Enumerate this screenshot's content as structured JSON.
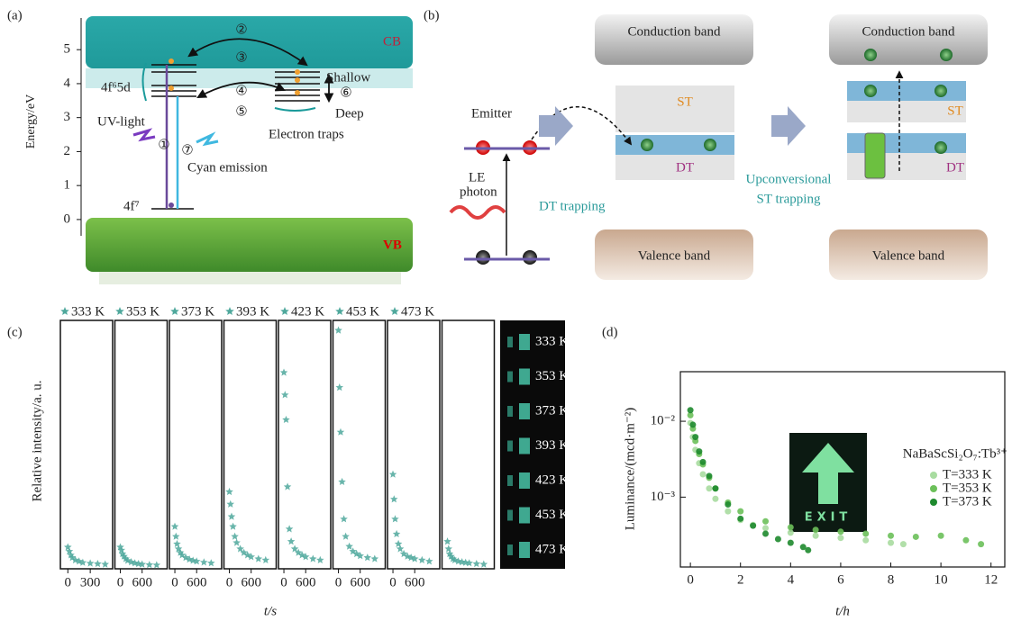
{
  "panel_a": {
    "label": "(a)",
    "y_label": "Energy/eV",
    "ylim": [
      -0.4,
      5.8
    ],
    "yticks": [
      0,
      1,
      2,
      3,
      4,
      5
    ],
    "texts": {
      "cb": "CB",
      "vb": "VB",
      "excited": "4f⁶5d",
      "ground": "4f⁷",
      "uv": "UV-light",
      "emission": "Cyan emission",
      "shallow": "Shallow",
      "deep": "Deep",
      "traps": "Electron traps",
      "s1": "①",
      "s2": "②",
      "s3": "③",
      "s4": "④",
      "s5": "⑤",
      "s6": "⑥",
      "s7": "⑦"
    }
  },
  "panel_b": {
    "label": "(b)",
    "texts": {
      "cb_left": "Conduction band",
      "cb_right": "Conduction band",
      "vb_left": "Valence band",
      "vb_right": "Valence band",
      "st_left": "ST",
      "dt_left": "DT",
      "st_right": "ST",
      "dt_right": "DT",
      "emitter": "Emitter",
      "le_1": "LE",
      "le_2": "photon",
      "dt_trapping": "DT trapping",
      "up_1": "Upconversional",
      "up_2": "ST trapping"
    }
  },
  "chart_data": [
    {
      "type": "scatter",
      "label": "(c)",
      "y_label": "Relative intensity/a. u.",
      "x_label": "t/s",
      "ylim": [
        0,
        100
      ],
      "photo_labels": [
        "333 K",
        "353 K",
        "373 K",
        "393 K",
        "423 K",
        "453 K",
        "473 K"
      ],
      "series": [
        {
          "name": "333 K",
          "color": "#4fa89c",
          "xlim": [
            -100,
            600
          ],
          "xticks": [
            0,
            300
          ],
          "x": [
            0,
            20,
            40,
            60,
            100,
            150,
            200,
            300,
            400,
            500
          ],
          "values": [
            8.7,
            7,
            5.5,
            4.5,
            3.5,
            3,
            2.5,
            2.2,
            2,
            1.8
          ]
        },
        {
          "name": "353 K",
          "color": "#4fa89c",
          "xlim": [
            -150,
            1290
          ],
          "xticks": [
            0,
            600
          ],
          "x": [
            0,
            30,
            60,
            100,
            150,
            200,
            300,
            400,
            500,
            600,
            800,
            1000
          ],
          "values": [
            8.7,
            7.5,
            6,
            5,
            4,
            3.3,
            2.7,
            2.3,
            2,
            1.8,
            1.6,
            1.5
          ]
        },
        {
          "name": "373 K",
          "color": "#4fa89c",
          "xlim": [
            -150,
            1290
          ],
          "xticks": [
            0,
            600
          ],
          "x": [
            0,
            30,
            60,
            100,
            150,
            200,
            300,
            400,
            500,
            600,
            800,
            1000
          ],
          "values": [
            17,
            13,
            10,
            8,
            6.5,
            5.5,
            4.5,
            3.8,
            3.3,
            3,
            2.6,
            2.3
          ]
        },
        {
          "name": "393 K",
          "color": "#4fa89c",
          "xlim": [
            -150,
            1290
          ],
          "xticks": [
            0,
            600
          ],
          "x": [
            0,
            30,
            60,
            100,
            150,
            200,
            300,
            400,
            500,
            600,
            800,
            1000
          ],
          "values": [
            31,
            26,
            21,
            17,
            13,
            10.5,
            8,
            6.5,
            5.5,
            4.8,
            4,
            3.5
          ]
        },
        {
          "name": "423 K",
          "color": "#4fa89c",
          "xlim": [
            -150,
            1290
          ],
          "xticks": [
            0,
            600
          ],
          "x": [
            0,
            30,
            60,
            100,
            150,
            200,
            300,
            400,
            500,
            600,
            800,
            1000
          ],
          "values": [
            79,
            70,
            60,
            33,
            16,
            11,
            8,
            6.5,
            5.5,
            4.8,
            4,
            3.5
          ]
        },
        {
          "name": "453 K",
          "color": "#4fa89c",
          "xlim": [
            -150,
            1290
          ],
          "xticks": [
            0,
            600
          ],
          "x": [
            0,
            30,
            60,
            100,
            150,
            200,
            300,
            400,
            500,
            600,
            800,
            1000
          ],
          "values": [
            96,
            73,
            55,
            35,
            20,
            13,
            9,
            7,
            6,
            5.2,
            4.5,
            4
          ]
        },
        {
          "name": "473 K",
          "color": "#4fa89c",
          "xlim": [
            -150,
            1290
          ],
          "xticks": [
            0,
            600
          ],
          "x": [
            0,
            30,
            60,
            100,
            150,
            200,
            300,
            400,
            500,
            600,
            800,
            1000
          ],
          "values": [
            38,
            28,
            20,
            14,
            10,
            8,
            6,
            5,
            4.5,
            4,
            3.5,
            3
          ]
        },
        {
          "name": null,
          "color": "#4fa89c",
          "xlim": [
            -150,
            1290
          ],
          "x": [
            0,
            30,
            60,
            100,
            150,
            200,
            300,
            400,
            500,
            600,
            800,
            1000
          ],
          "values": [
            11,
            8,
            6,
            5,
            4,
            3.5,
            3,
            2.7,
            2.5,
            2.3,
            2,
            1.8
          ]
        }
      ]
    },
    {
      "type": "scatter",
      "label": "(d)",
      "y_label": "Luminance/(mcd·m⁻²)",
      "x_label": "t/h",
      "log_y": true,
      "annotation": "NaBaScSi₂O₇:Tb³⁺",
      "sign": "EXIT",
      "xlim": [
        -0.4,
        12.55
      ],
      "xticks": [
        0,
        2,
        4,
        6,
        8,
        10,
        12
      ],
      "ylim": [
        0.00012,
        0.045
      ],
      "yticks": [
        {
          "value": 0.01,
          "label": "10⁻²"
        },
        {
          "value": 0.001,
          "label": "10⁻³"
        }
      ],
      "series": [
        {
          "name": "T=333 K",
          "color": "#a8dca0",
          "x": [
            0,
            0.1,
            0.2,
            0.35,
            0.5,
            0.75,
            1,
            1.5,
            2,
            2.5,
            3,
            4,
            5,
            6,
            7,
            8,
            8.5
          ],
          "values": [
            0.0095,
            0.0062,
            0.0042,
            0.0028,
            0.002,
            0.0013,
            0.00095,
            0.00065,
            0.0005,
            0.00043,
            0.00039,
            0.00034,
            0.00031,
            0.00029,
            0.00027,
            0.00025,
            0.00024
          ]
        },
        {
          "name": "T=353 K",
          "color": "#6cc05a",
          "x": [
            0,
            0.1,
            0.2,
            0.35,
            0.5,
            0.75,
            1,
            1.5,
            2,
            3,
            4,
            5,
            6,
            7,
            8,
            9,
            10,
            11,
            11.6
          ],
          "values": [
            0.012,
            0.008,
            0.0055,
            0.0037,
            0.0027,
            0.0018,
            0.0013,
            0.00085,
            0.00065,
            0.00048,
            0.0004,
            0.00037,
            0.00035,
            0.00033,
            0.00031,
            0.0003,
            0.00031,
            0.00027,
            0.00024
          ]
        },
        {
          "name": "T=373 K",
          "color": "#1e8a2e",
          "x": [
            0,
            0.1,
            0.2,
            0.35,
            0.5,
            0.75,
            1,
            1.5,
            2,
            2.5,
            3,
            3.5,
            4,
            4.5,
            4.7
          ],
          "values": [
            0.014,
            0.009,
            0.0062,
            0.004,
            0.0029,
            0.0019,
            0.0013,
            0.0008,
            0.00052,
            0.00042,
            0.00033,
            0.00028,
            0.00025,
            0.00022,
            0.0002
          ]
        }
      ]
    }
  ]
}
